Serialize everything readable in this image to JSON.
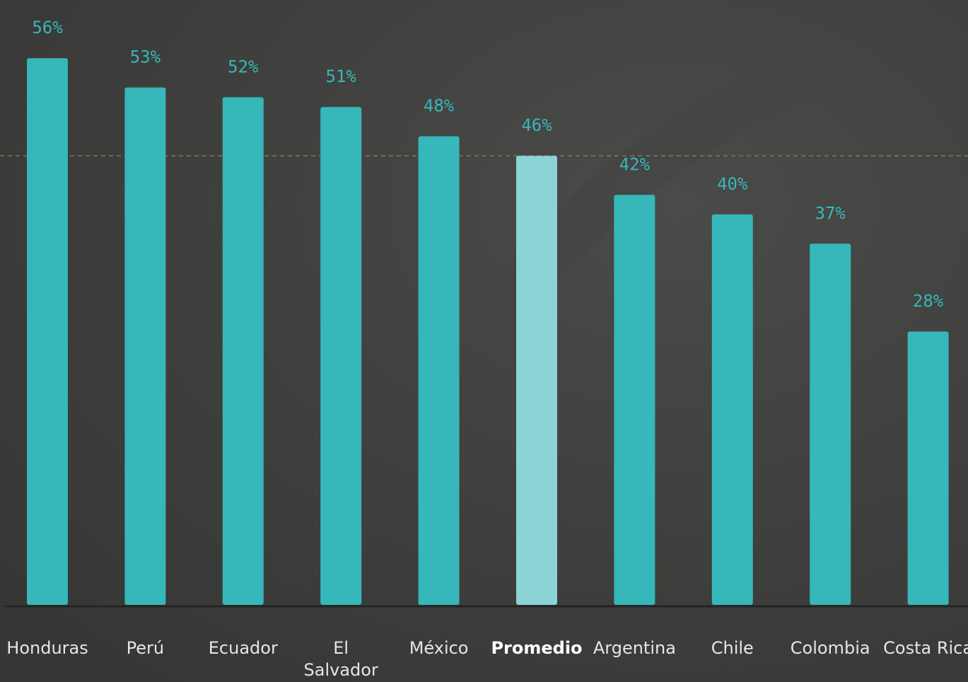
{
  "chart_data": {
    "type": "bar",
    "categories": [
      "Honduras",
      "Perú",
      "Ecuador",
      "El Salvador",
      "México",
      "Promedio",
      "Argentina",
      "Chile",
      "Colombia",
      "Costa Rica"
    ],
    "values": [
      56,
      53,
      52,
      51,
      48,
      46,
      42,
      40,
      37,
      28
    ],
    "value_labels": [
      "56%",
      "53%",
      "52%",
      "51%",
      "48%",
      "46%",
      "42%",
      "40%",
      "37%",
      "28%"
    ],
    "color": "#36b7b9",
    "highlight": "Promedio",
    "highlight_color": "#8cd3d6",
    "ylim": [
      0,
      60
    ]
  }
}
